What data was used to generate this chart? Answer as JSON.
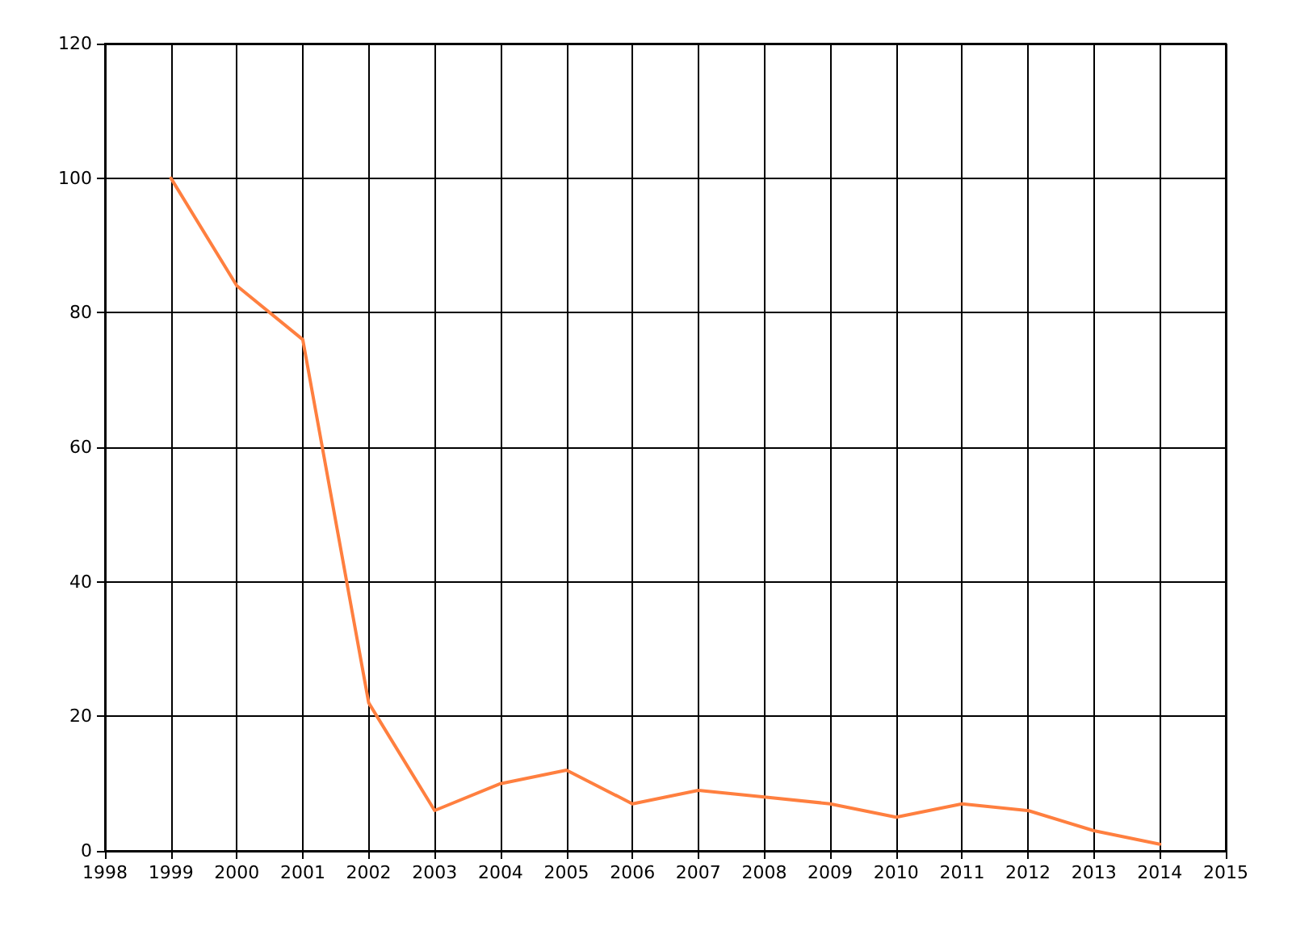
{
  "chart_data": {
    "type": "line",
    "x": [
      1999,
      2000,
      2001,
      2002,
      2003,
      2004,
      2005,
      2006,
      2007,
      2008,
      2009,
      2010,
      2011,
      2012,
      2013,
      2014
    ],
    "series": [
      {
        "color": "#ff7f3f",
        "values": [
          100,
          84,
          76,
          22,
          6,
          10,
          12,
          7,
          9,
          8,
          7,
          5,
          7,
          6,
          3,
          1
        ]
      }
    ],
    "xlim": [
      1998,
      2015
    ],
    "xticks": [
      1998,
      1999,
      2000,
      2001,
      2002,
      2003,
      2004,
      2005,
      2006,
      2007,
      2008,
      2009,
      2010,
      2011,
      2012,
      2013,
      2014,
      2015
    ],
    "ylim": [
      0,
      120
    ],
    "yticks": [
      0,
      20,
      40,
      60,
      80,
      100,
      120
    ],
    "grid": true,
    "marker": "none",
    "line_style": "solid"
  }
}
